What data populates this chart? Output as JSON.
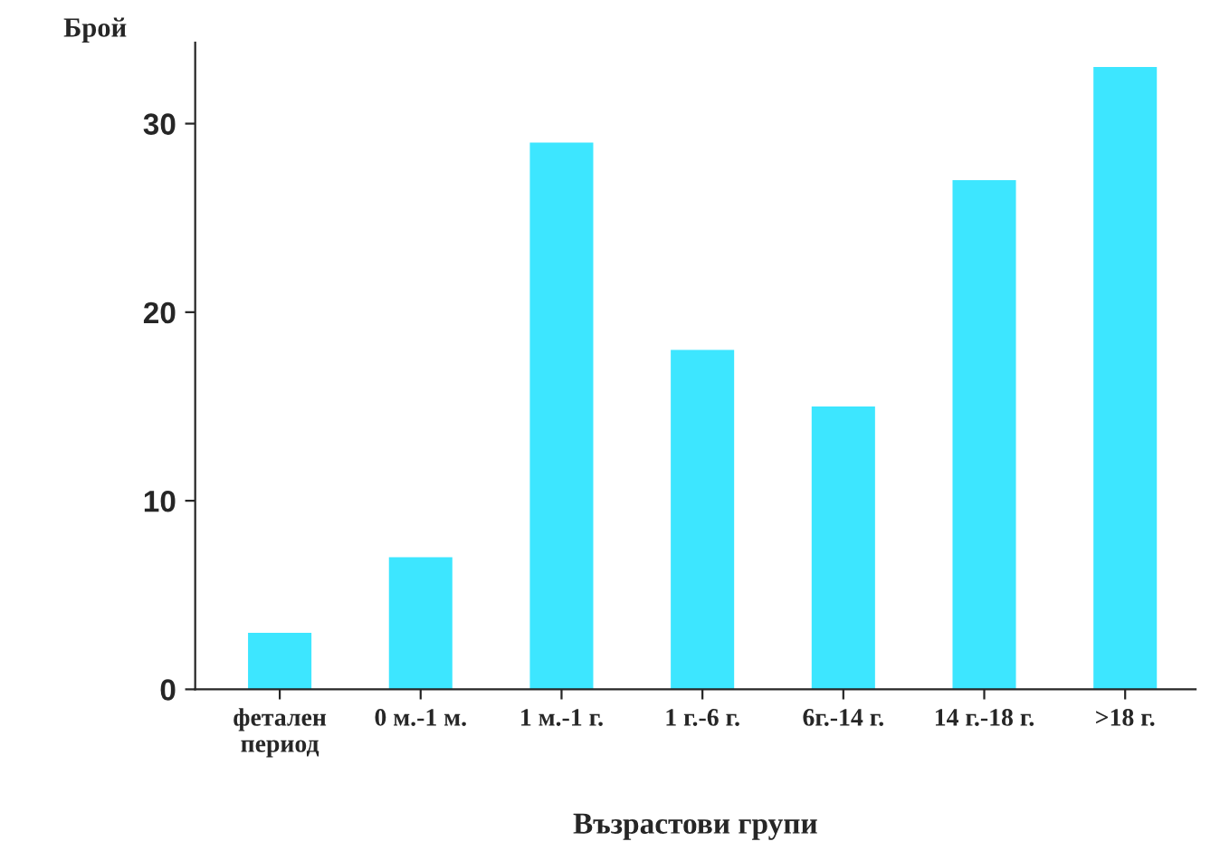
{
  "chart_data": {
    "type": "bar",
    "categories": [
      "фетален\nпериод",
      "0 м.-1 м.",
      "1 м.-1 г.",
      "1 г.-6 г.",
      "6г.-14 г.",
      "14 г.-18 г.",
      ">18 г."
    ],
    "values": [
      3,
      7,
      29,
      18,
      15,
      27,
      33
    ],
    "color": "#3de6ff",
    "xlabel": "Възрастови групи",
    "ylabel": "Брой",
    "ylim": [
      0,
      34.3
    ],
    "yticks": [
      0,
      10,
      20,
      30
    ],
    "grid": false,
    "legend": false
  }
}
